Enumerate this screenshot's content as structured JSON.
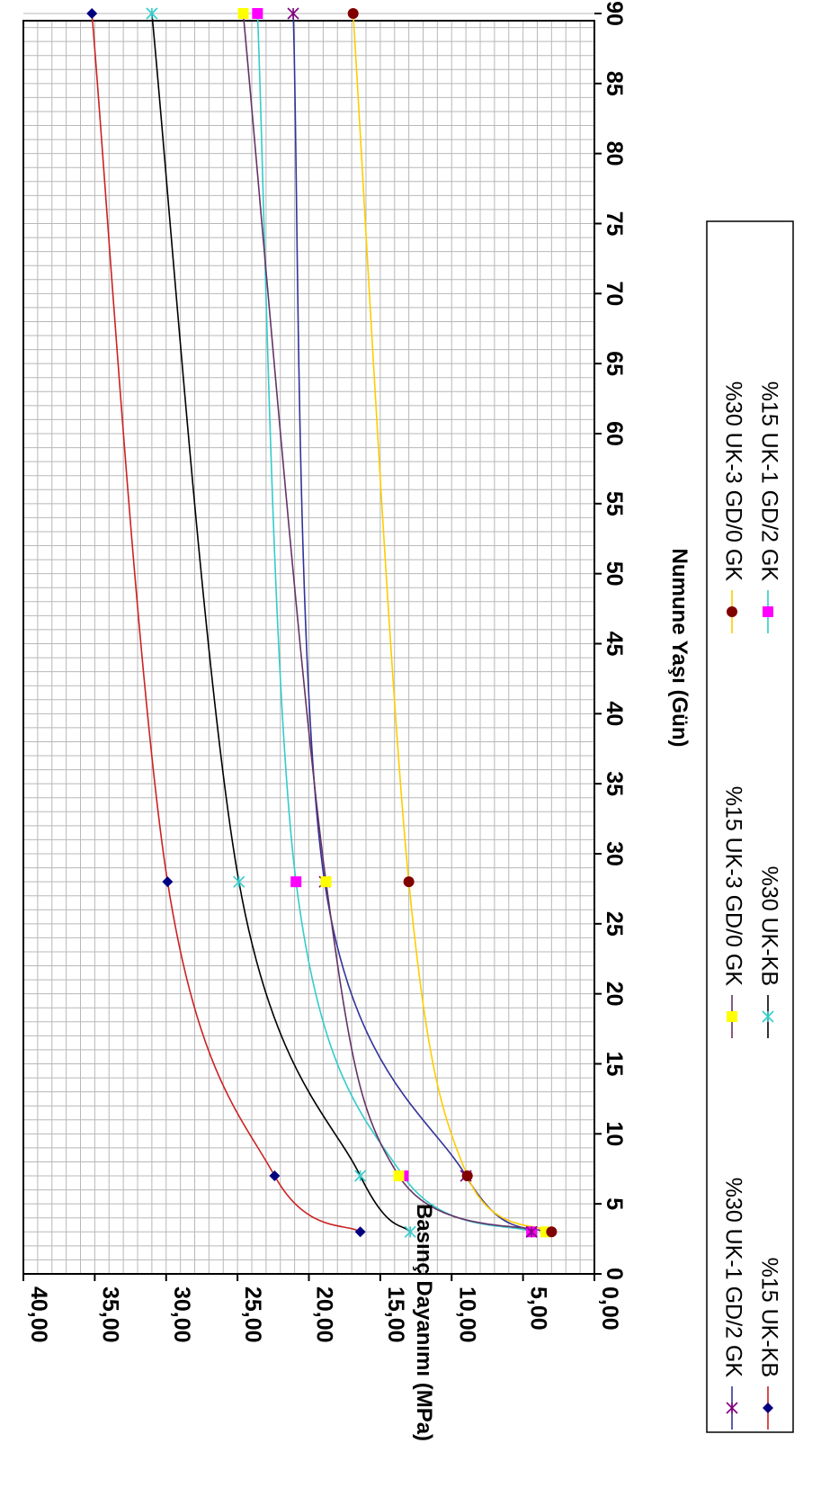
{
  "chart_data": {
    "type": "line",
    "xlabel": "Numune Yaşı (Gün)",
    "ylabel": "Basınç Dayanımı (MPa)",
    "xlim": [
      0,
      90
    ],
    "ylim": [
      0,
      40
    ],
    "x_ticks": [
      "0",
      "5",
      "10",
      "15",
      "20",
      "25",
      "30",
      "35",
      "40",
      "45",
      "50",
      "55",
      "60",
      "65",
      "70",
      "75",
      "80",
      "85",
      "90"
    ],
    "y_ticks": [
      "0,00",
      "5,00",
      "10,00",
      "15,00",
      "20,00",
      "25,00",
      "30,00",
      "35,00",
      "40,00"
    ],
    "grid": true,
    "legend_position": "bottom",
    "orientation": "rotated 90° clockwise",
    "series": [
      {
        "name": "%15 UK-KB",
        "x": [
          3,
          7,
          28,
          90
        ],
        "values": [
          16.4,
          22.4,
          29.9,
          35.2
        ],
        "color": "#cc2222",
        "marker": "diamond",
        "marker_color": "#000080"
      },
      {
        "name": "%30 UK-KB",
        "x": [
          3,
          7,
          28,
          90
        ],
        "values": [
          12.9,
          16.4,
          24.9,
          31.0
        ],
        "color": "#000000",
        "marker": "star",
        "marker_color": "#33cccc"
      },
      {
        "name": "%15 UK-1 GD/2 GK",
        "x": [
          3,
          7,
          28,
          90
        ],
        "values": [
          4.4,
          13.4,
          20.9,
          23.6
        ],
        "color": "#33cccc",
        "marker": "square",
        "marker_color": "#ff00ff"
      },
      {
        "name": "%30 UK-1 GD/2 GK",
        "x": [
          3,
          7,
          28,
          90
        ],
        "values": [
          4.4,
          9.0,
          18.9,
          21.1
        ],
        "color": "#333399",
        "marker": "star",
        "marker_color": "#800080"
      },
      {
        "name": "%15 UK-3 GD/0 GK",
        "x": [
          3,
          7,
          28,
          90
        ],
        "values": [
          3.4,
          13.7,
          18.8,
          24.6
        ],
        "color": "#663366",
        "marker": "square",
        "marker_color": "#ffff00"
      },
      {
        "name": "%30 UK-3 GD/0 GK",
        "x": [
          3,
          7,
          28,
          90
        ],
        "values": [
          3.0,
          8.9,
          13.0,
          16.9
        ],
        "color": "#ffcc00",
        "marker": "circle",
        "marker_color": "#800000"
      }
    ]
  }
}
